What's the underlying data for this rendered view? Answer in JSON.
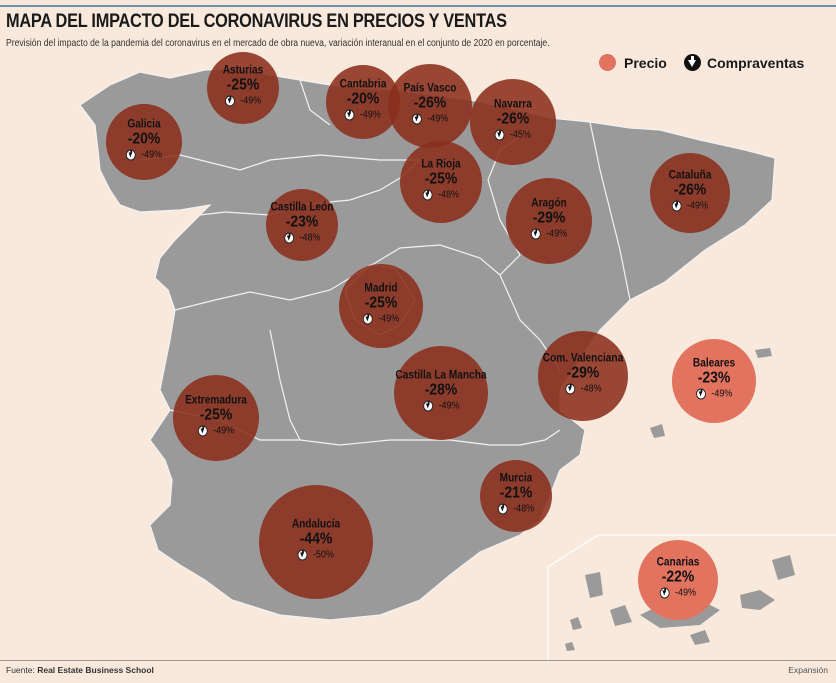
{
  "header": {
    "title": "MAPA DEL IMPACTO DEL CORONAVIRUS EN PRECIOS Y VENTAS",
    "subtitle": "Previsión del impacto de la pandemia del coronavirus en el mercado de obra nueva, variación interanual en el conjunto de 2020 en porcentaje."
  },
  "legend": {
    "price_label": "Precio",
    "sales_label": "Compraventas"
  },
  "colors": {
    "background": "#f8e9dc",
    "land": "#9a9a9a",
    "circle_dark": "#8b2f1c",
    "circle_light": "#e2735f"
  },
  "regions": [
    {
      "name": "Asturias",
      "price": "-25%",
      "sales": "-49%",
      "style": "dark"
    },
    {
      "name": "Cantabria",
      "price": "-20%",
      "sales": "-49%",
      "style": "dark"
    },
    {
      "name": "País Vasco",
      "price": "-26%",
      "sales": "-49%",
      "style": "dark"
    },
    {
      "name": "Navarra",
      "price": "-26%",
      "sales": "-45%",
      "style": "dark"
    },
    {
      "name": "Galicia",
      "price": "-20%",
      "sales": "-49%",
      "style": "dark"
    },
    {
      "name": "La Rioja",
      "price": "-25%",
      "sales": "-48%",
      "style": "dark"
    },
    {
      "name": "Castilla León",
      "price": "-23%",
      "sales": "-48%",
      "style": "dark"
    },
    {
      "name": "Aragón",
      "price": "-29%",
      "sales": "-49%",
      "style": "dark"
    },
    {
      "name": "Cataluña",
      "price": "-26%",
      "sales": "-49%",
      "style": "dark"
    },
    {
      "name": "Madrid",
      "price": "-25%",
      "sales": "-49%",
      "style": "dark"
    },
    {
      "name": "Com. Valenciana",
      "price": "-29%",
      "sales": "-48%",
      "style": "dark"
    },
    {
      "name": "Baleares",
      "price": "-23%",
      "sales": "-49%",
      "style": "light"
    },
    {
      "name": "Extremadura",
      "price": "-25%",
      "sales": "-49%",
      "style": "dark"
    },
    {
      "name": "Castilla La Mancha",
      "price": "-28%",
      "sales": "-49%",
      "style": "dark"
    },
    {
      "name": "Murcia",
      "price": "-21%",
      "sales": "-48%",
      "style": "dark"
    },
    {
      "name": "Andalucía",
      "price": "-44%",
      "sales": "-50%",
      "style": "dark"
    },
    {
      "name": "Canarias",
      "price": "-22%",
      "sales": "-49%",
      "style": "light"
    }
  ],
  "footer": {
    "source_prefix": "Fuente:",
    "source": "Real Estate Business School",
    "credit": "Expansión"
  }
}
